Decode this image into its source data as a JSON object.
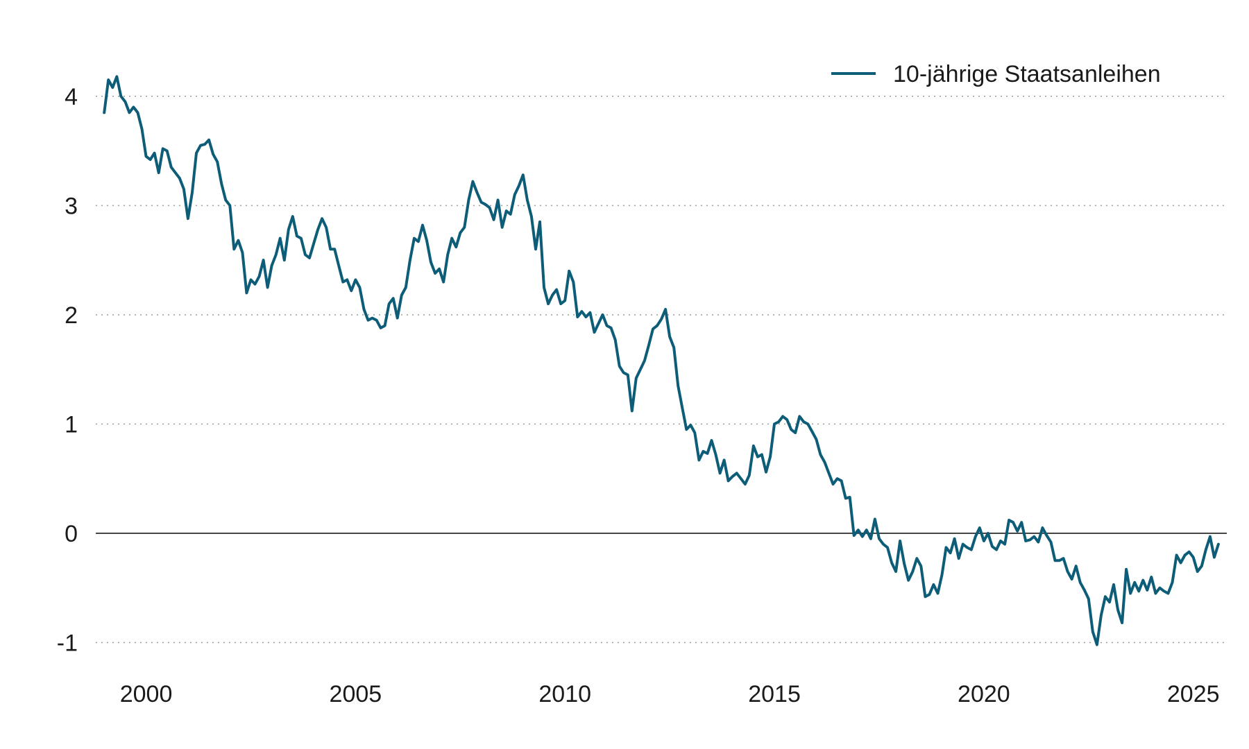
{
  "chart_data": {
    "type": "line",
    "title": "",
    "xlabel": "",
    "ylabel": "",
    "xlim": [
      1998.5,
      2025.8
    ],
    "ylim": [
      -1.2,
      4.5
    ],
    "x_ticks": [
      2000,
      2005,
      2010,
      2015,
      2020,
      2025
    ],
    "x_tick_labels": [
      "2000",
      "2005",
      "2010",
      "2015",
      "2020",
      "2025"
    ],
    "y_ticks": [
      -1,
      0,
      1,
      2,
      3,
      4
    ],
    "y_tick_labels": [
      "-1",
      "0",
      "1",
      "2",
      "3",
      "4"
    ],
    "grid": "horizontal-dotted",
    "legend": "top-right",
    "series": [
      {
        "name": "10-jährige Staatsanleihen",
        "color": "#0d5d78",
        "values": [
          [
            1999.0,
            3.85
          ],
          [
            1999.1,
            4.15
          ],
          [
            1999.2,
            4.08
          ],
          [
            1999.3,
            4.18
          ],
          [
            1999.4,
            4.0
          ],
          [
            1999.5,
            3.95
          ],
          [
            1999.6,
            3.85
          ],
          [
            1999.7,
            3.9
          ],
          [
            1999.8,
            3.85
          ],
          [
            1999.9,
            3.7
          ],
          [
            2000.0,
            3.45
          ],
          [
            2000.1,
            3.42
          ],
          [
            2000.2,
            3.48
          ],
          [
            2000.3,
            3.3
          ],
          [
            2000.4,
            3.52
          ],
          [
            2000.5,
            3.5
          ],
          [
            2000.6,
            3.35
          ],
          [
            2000.7,
            3.3
          ],
          [
            2000.8,
            3.25
          ],
          [
            2000.9,
            3.15
          ],
          [
            2001.0,
            2.88
          ],
          [
            2001.1,
            3.12
          ],
          [
            2001.2,
            3.48
          ],
          [
            2001.3,
            3.55
          ],
          [
            2001.4,
            3.56
          ],
          [
            2001.5,
            3.6
          ],
          [
            2001.6,
            3.47
          ],
          [
            2001.7,
            3.4
          ],
          [
            2001.8,
            3.2
          ],
          [
            2001.9,
            3.05
          ],
          [
            2002.0,
            3.0
          ],
          [
            2002.1,
            2.6
          ],
          [
            2002.2,
            2.68
          ],
          [
            2002.3,
            2.57
          ],
          [
            2002.4,
            2.2
          ],
          [
            2002.5,
            2.32
          ],
          [
            2002.6,
            2.28
          ],
          [
            2002.7,
            2.35
          ],
          [
            2002.8,
            2.5
          ],
          [
            2002.9,
            2.25
          ],
          [
            2003.0,
            2.45
          ],
          [
            2003.1,
            2.55
          ],
          [
            2003.2,
            2.7
          ],
          [
            2003.3,
            2.5
          ],
          [
            2003.4,
            2.78
          ],
          [
            2003.5,
            2.9
          ],
          [
            2003.6,
            2.72
          ],
          [
            2003.7,
            2.7
          ],
          [
            2003.8,
            2.55
          ],
          [
            2003.9,
            2.52
          ],
          [
            2004.0,
            2.65
          ],
          [
            2004.1,
            2.78
          ],
          [
            2004.2,
            2.88
          ],
          [
            2004.3,
            2.8
          ],
          [
            2004.4,
            2.6
          ],
          [
            2004.5,
            2.6
          ],
          [
            2004.6,
            2.45
          ],
          [
            2004.7,
            2.3
          ],
          [
            2004.8,
            2.32
          ],
          [
            2004.9,
            2.22
          ],
          [
            2005.0,
            2.32
          ],
          [
            2005.1,
            2.25
          ],
          [
            2005.2,
            2.05
          ],
          [
            2005.3,
            1.95
          ],
          [
            2005.4,
            1.97
          ],
          [
            2005.5,
            1.95
          ],
          [
            2005.6,
            1.88
          ],
          [
            2005.7,
            1.9
          ],
          [
            2005.8,
            2.1
          ],
          [
            2005.9,
            2.15
          ],
          [
            2006.0,
            1.97
          ],
          [
            2006.1,
            2.18
          ],
          [
            2006.2,
            2.25
          ],
          [
            2006.3,
            2.5
          ],
          [
            2006.4,
            2.7
          ],
          [
            2006.5,
            2.67
          ],
          [
            2006.6,
            2.82
          ],
          [
            2006.7,
            2.68
          ],
          [
            2006.8,
            2.48
          ],
          [
            2006.9,
            2.38
          ],
          [
            2007.0,
            2.42
          ],
          [
            2007.1,
            2.3
          ],
          [
            2007.2,
            2.55
          ],
          [
            2007.3,
            2.7
          ],
          [
            2007.4,
            2.62
          ],
          [
            2007.5,
            2.75
          ],
          [
            2007.6,
            2.8
          ],
          [
            2007.7,
            3.05
          ],
          [
            2007.8,
            3.22
          ],
          [
            2007.9,
            3.12
          ],
          [
            2008.0,
            3.03
          ],
          [
            2008.1,
            3.01
          ],
          [
            2008.2,
            2.98
          ],
          [
            2008.3,
            2.87
          ],
          [
            2008.4,
            3.05
          ],
          [
            2008.5,
            2.8
          ],
          [
            2008.6,
            2.95
          ],
          [
            2008.7,
            2.92
          ],
          [
            2008.8,
            3.1
          ],
          [
            2008.9,
            3.18
          ],
          [
            2009.0,
            3.28
          ],
          [
            2009.1,
            3.05
          ],
          [
            2009.2,
            2.9
          ],
          [
            2009.3,
            2.6
          ],
          [
            2009.4,
            2.85
          ],
          [
            2009.5,
            2.25
          ],
          [
            2009.6,
            2.1
          ],
          [
            2009.7,
            2.18
          ],
          [
            2009.8,
            2.23
          ],
          [
            2009.9,
            2.1
          ],
          [
            2010.0,
            2.13
          ],
          [
            2010.1,
            2.4
          ],
          [
            2010.2,
            2.3
          ],
          [
            2010.3,
            1.98
          ],
          [
            2010.4,
            2.03
          ],
          [
            2010.5,
            1.98
          ],
          [
            2010.6,
            2.02
          ],
          [
            2010.7,
            1.84
          ],
          [
            2010.8,
            1.92
          ],
          [
            2010.9,
            2.0
          ],
          [
            2011.0,
            1.9
          ],
          [
            2011.1,
            1.88
          ],
          [
            2011.2,
            1.77
          ],
          [
            2011.3,
            1.53
          ],
          [
            2011.4,
            1.47
          ],
          [
            2011.5,
            1.45
          ],
          [
            2011.6,
            1.12
          ],
          [
            2011.7,
            1.42
          ],
          [
            2011.8,
            1.5
          ],
          [
            2011.9,
            1.58
          ],
          [
            2012.0,
            1.72
          ],
          [
            2012.1,
            1.87
          ],
          [
            2012.2,
            1.9
          ],
          [
            2012.3,
            1.96
          ],
          [
            2012.4,
            2.05
          ],
          [
            2012.5,
            1.8
          ],
          [
            2012.6,
            1.7
          ],
          [
            2012.7,
            1.35
          ],
          [
            2012.8,
            1.15
          ],
          [
            2012.9,
            0.95
          ],
          [
            2013.0,
            0.99
          ],
          [
            2013.1,
            0.92
          ],
          [
            2013.2,
            0.67
          ],
          [
            2013.3,
            0.75
          ],
          [
            2013.4,
            0.73
          ],
          [
            2013.5,
            0.85
          ],
          [
            2013.6,
            0.72
          ],
          [
            2013.7,
            0.55
          ],
          [
            2013.8,
            0.67
          ],
          [
            2013.9,
            0.48
          ],
          [
            2014.0,
            0.52
          ],
          [
            2014.1,
            0.55
          ],
          [
            2014.2,
            0.5
          ],
          [
            2014.3,
            0.45
          ],
          [
            2014.4,
            0.53
          ],
          [
            2014.5,
            0.8
          ],
          [
            2014.6,
            0.7
          ],
          [
            2014.7,
            0.72
          ],
          [
            2014.8,
            0.56
          ],
          [
            2014.9,
            0.7
          ],
          [
            2015.0,
            1.0
          ],
          [
            2015.1,
            1.02
          ],
          [
            2015.2,
            1.07
          ],
          [
            2015.3,
            1.04
          ],
          [
            2015.4,
            0.95
          ],
          [
            2015.5,
            0.92
          ],
          [
            2015.6,
            1.07
          ],
          [
            2015.7,
            1.02
          ],
          [
            2015.8,
            1.0
          ],
          [
            2015.9,
            0.93
          ],
          [
            2016.0,
            0.86
          ],
          [
            2016.1,
            0.72
          ],
          [
            2016.2,
            0.65
          ],
          [
            2016.3,
            0.55
          ],
          [
            2016.4,
            0.45
          ],
          [
            2016.5,
            0.5
          ],
          [
            2016.6,
            0.48
          ],
          [
            2016.7,
            0.32
          ],
          [
            2016.8,
            0.33
          ],
          [
            2016.9,
            -0.02
          ],
          [
            2017.0,
            0.03
          ],
          [
            2017.1,
            -0.03
          ],
          [
            2017.2,
            0.03
          ],
          [
            2017.3,
            -0.05
          ],
          [
            2017.4,
            0.13
          ],
          [
            2017.5,
            -0.05
          ],
          [
            2017.6,
            -0.1
          ],
          [
            2017.7,
            -0.13
          ],
          [
            2017.8,
            -0.27
          ],
          [
            2017.9,
            -0.35
          ],
          [
            2018.0,
            -0.07
          ],
          [
            2018.1,
            -0.28
          ],
          [
            2018.2,
            -0.43
          ],
          [
            2018.3,
            -0.35
          ],
          [
            2018.4,
            -0.23
          ],
          [
            2018.5,
            -0.3
          ],
          [
            2018.6,
            -0.58
          ],
          [
            2018.7,
            -0.56
          ],
          [
            2018.8,
            -0.47
          ],
          [
            2018.9,
            -0.55
          ],
          [
            2019.0,
            -0.38
          ],
          [
            2019.1,
            -0.13
          ],
          [
            2019.2,
            -0.18
          ],
          [
            2019.3,
            -0.05
          ],
          [
            2019.4,
            -0.23
          ],
          [
            2019.5,
            -0.1
          ],
          [
            2019.6,
            -0.13
          ],
          [
            2019.7,
            -0.15
          ],
          [
            2019.8,
            -0.03
          ],
          [
            2019.9,
            0.05
          ],
          [
            2020.0,
            -0.07
          ],
          [
            2020.1,
            0.0
          ],
          [
            2020.2,
            -0.12
          ],
          [
            2020.3,
            -0.15
          ],
          [
            2020.4,
            -0.07
          ],
          [
            2020.5,
            -0.1
          ],
          [
            2020.6,
            0.12
          ],
          [
            2020.7,
            0.1
          ],
          [
            2020.8,
            0.02
          ],
          [
            2020.9,
            0.1
          ],
          [
            2021.0,
            -0.07
          ],
          [
            2021.1,
            -0.06
          ],
          [
            2021.2,
            -0.03
          ],
          [
            2021.3,
            -0.08
          ],
          [
            2021.4,
            0.05
          ],
          [
            2021.5,
            -0.02
          ],
          [
            2021.6,
            -0.08
          ],
          [
            2021.7,
            -0.25
          ],
          [
            2021.8,
            -0.25
          ],
          [
            2021.9,
            -0.23
          ],
          [
            2022.0,
            -0.35
          ],
          [
            2022.1,
            -0.42
          ],
          [
            2022.2,
            -0.3
          ],
          [
            2022.3,
            -0.45
          ],
          [
            2022.4,
            -0.52
          ],
          [
            2022.5,
            -0.6
          ],
          [
            2022.6,
            -0.9
          ],
          [
            2022.7,
            -1.02
          ],
          [
            2022.8,
            -0.75
          ],
          [
            2022.9,
            -0.58
          ],
          [
            2023.0,
            -0.63
          ],
          [
            2023.1,
            -0.47
          ],
          [
            2023.2,
            -0.7
          ],
          [
            2023.3,
            -0.82
          ],
          [
            2023.4,
            -0.33
          ],
          [
            2023.5,
            -0.55
          ],
          [
            2023.6,
            -0.45
          ],
          [
            2023.7,
            -0.53
          ],
          [
            2023.8,
            -0.43
          ],
          [
            2023.9,
            -0.52
          ],
          [
            2024.0,
            -0.4
          ],
          [
            2024.1,
            -0.55
          ],
          [
            2024.2,
            -0.5
          ],
          [
            2024.3,
            -0.53
          ],
          [
            2024.4,
            -0.55
          ],
          [
            2024.5,
            -0.45
          ],
          [
            2024.6,
            -0.2
          ],
          [
            2024.7,
            -0.27
          ],
          [
            2024.8,
            -0.2
          ],
          [
            2024.9,
            -0.17
          ],
          [
            2025.0,
            -0.22
          ],
          [
            2025.1,
            -0.35
          ],
          [
            2025.2,
            -0.3
          ],
          [
            2025.3,
            -0.15
          ],
          [
            2025.4,
            -0.03
          ],
          [
            2025.5,
            -0.22
          ],
          [
            2025.6,
            -0.1
          ]
        ]
      }
    ]
  }
}
